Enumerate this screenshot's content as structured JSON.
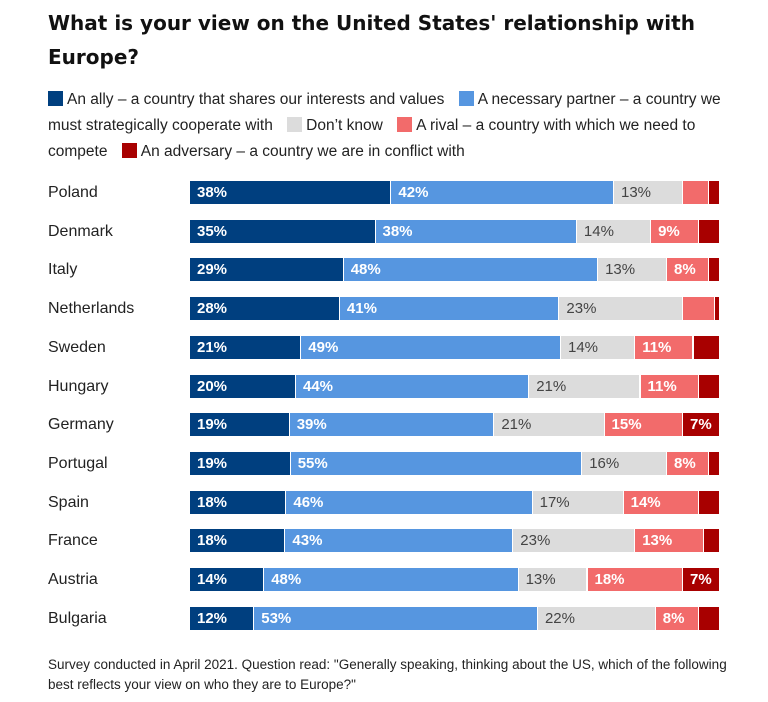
{
  "chart_data": {
    "type": "bar",
    "orientation": "horizontal",
    "stacked": true,
    "title": "What is your view on the United States' relationship with Europe?",
    "xlabel": "",
    "ylabel": "",
    "xlim": [
      0,
      100
    ],
    "grid": false,
    "legend_position": "top",
    "categories": [
      "Poland",
      "Denmark",
      "Italy",
      "Netherlands",
      "Sweden",
      "Hungary",
      "Germany",
      "Portugal",
      "Spain",
      "France",
      "Austria",
      "Bulgaria"
    ],
    "series": [
      {
        "name": "An ally – a country that shares our interests and values",
        "color": "#003f7f",
        "values": [
          38,
          35,
          29,
          28,
          21,
          20,
          19,
          19,
          18,
          18,
          14,
          12
        ],
        "labels": [
          "38%",
          "35%",
          "29%",
          "28%",
          "21%",
          "20%",
          "19%",
          "19%",
          "18%",
          "18%",
          "14%",
          "12%"
        ]
      },
      {
        "name": "A necessary partner – a country we must strategically cooperate with",
        "color": "#5696e0",
        "values": [
          42,
          38,
          48,
          41,
          49,
          44,
          39,
          55,
          46,
          43,
          48,
          53
        ],
        "labels": [
          "42%",
          "38%",
          "48%",
          "41%",
          "49%",
          "44%",
          "39%",
          "55%",
          "46%",
          "43%",
          "48%",
          "53%"
        ]
      },
      {
        "name": "Don’t know",
        "color": "#dcdcdc",
        "values": [
          13,
          14,
          13,
          23,
          14,
          21,
          21,
          16,
          17,
          23,
          13,
          22
        ],
        "labels": [
          "13%",
          "14%",
          "13%",
          "23%",
          "14%",
          "21%",
          "21%",
          "16%",
          "17%",
          "23%",
          "13%",
          "22%"
        ]
      },
      {
        "name": "A rival – a country with which we need to compete",
        "color": "#f26b6b",
        "values": [
          5,
          9,
          8,
          6,
          11,
          11,
          15,
          8,
          14,
          13,
          18,
          8
        ],
        "labels": [
          "",
          "9%",
          "8%",
          "",
          "11%",
          "11%",
          "15%",
          "8%",
          "14%",
          "13%",
          "18%",
          "8%"
        ]
      },
      {
        "name": "An adversary – a country we are in conflict with",
        "color": "#a80000",
        "values": [
          2,
          4,
          2,
          1,
          5,
          4,
          7,
          2,
          4,
          3,
          7,
          4
        ],
        "labels": [
          "",
          "",
          "",
          "",
          "",
          "",
          "7%",
          "",
          "",
          "",
          "7%",
          ""
        ]
      }
    ]
  },
  "footnote": "Survey conducted in April 2021. Question read: \"Generally speaking, thinking about the US, which of the following best reflects your view on who they are to Europe?\""
}
